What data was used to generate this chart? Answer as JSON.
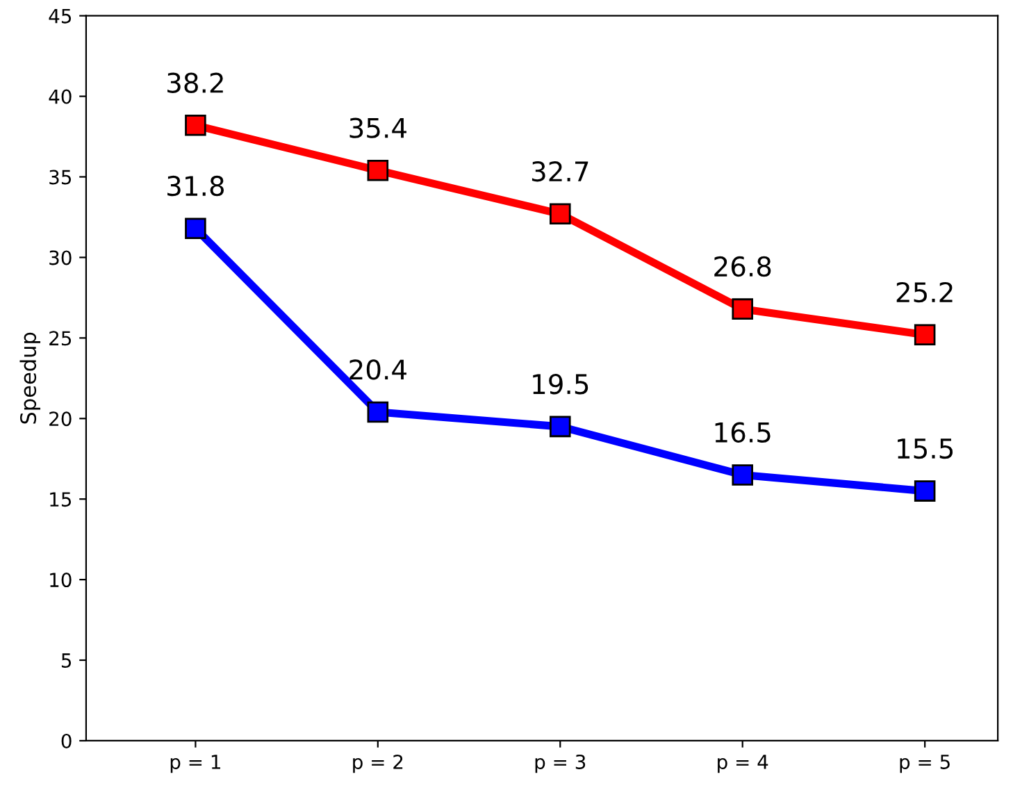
{
  "chart_data": {
    "type": "line",
    "ylabel": "Speedup",
    "categories": [
      "p = 1",
      "p = 2",
      "p = 3",
      "p = 4",
      "p = 5"
    ],
    "series": [
      {
        "color": "#ff0000",
        "values": [
          38.2,
          35.4,
          32.7,
          26.8,
          25.2
        ]
      },
      {
        "color": "#0000ff",
        "values": [
          31.8,
          20.4,
          19.5,
          16.5,
          15.5
        ]
      }
    ],
    "ylim": [
      0,
      45
    ],
    "yticks": [
      0,
      5,
      10,
      15,
      20,
      25,
      30,
      35,
      40,
      45
    ],
    "marker": "square",
    "line_style": "solid",
    "data_labels": true,
    "grid": false,
    "legend": false
  }
}
